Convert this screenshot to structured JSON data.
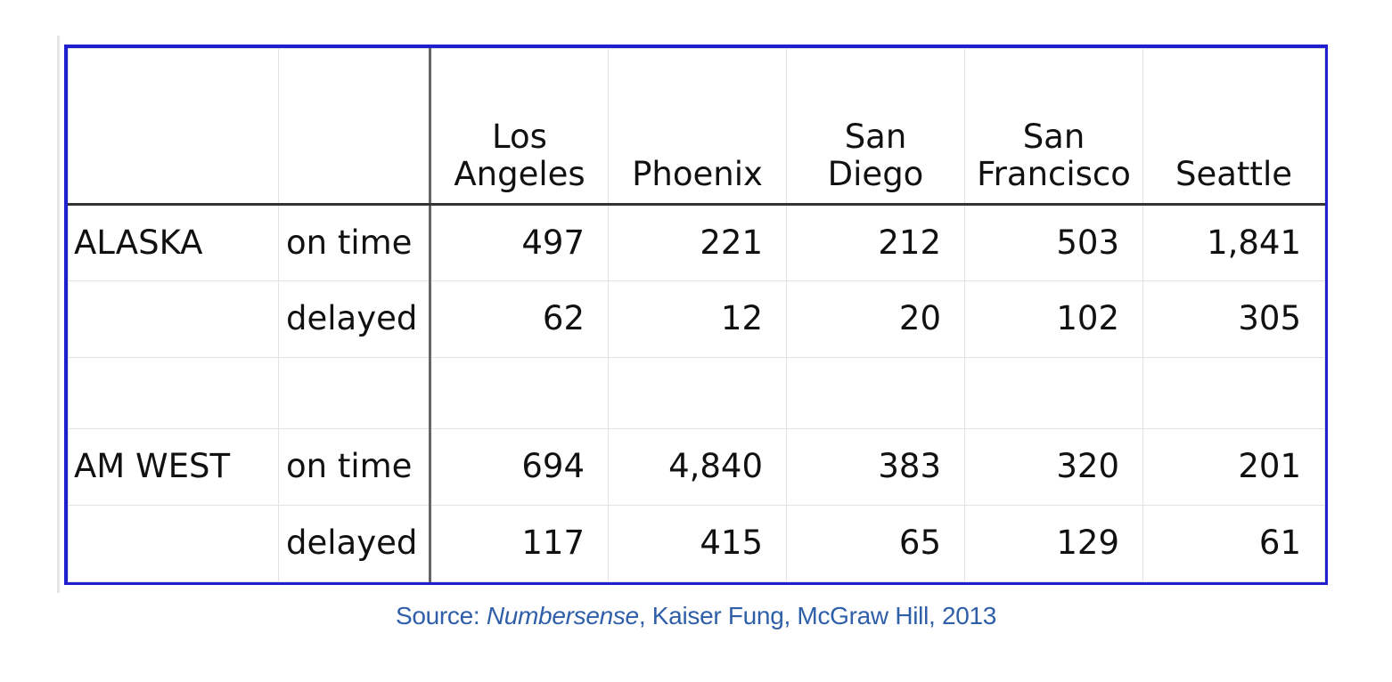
{
  "table": {
    "columns": [
      "Los Angeles",
      "Phoenix",
      "San Diego",
      "San Francisco",
      "Seattle"
    ],
    "column_lines": [
      [
        "Los",
        "Angeles"
      ],
      [
        "",
        "Phoenix"
      ],
      [
        "San",
        "Diego"
      ],
      [
        "San",
        "Francisco"
      ],
      [
        "",
        "Seattle"
      ]
    ],
    "rows": [
      {
        "airline": "ALASKA",
        "status": "on time",
        "values": [
          "497",
          "221",
          "212",
          "503",
          "1,841"
        ]
      },
      {
        "airline": "",
        "status": "delayed",
        "values": [
          "62",
          "12",
          "20",
          "102",
          "305"
        ]
      },
      {
        "airline": "",
        "status": "",
        "values": [
          "",
          "",
          "",
          "",
          ""
        ]
      },
      {
        "airline": "AM WEST",
        "status": "on time",
        "values": [
          "694",
          "4,840",
          "383",
          "320",
          "201"
        ]
      },
      {
        "airline": "",
        "status": "delayed",
        "values": [
          "117",
          "415",
          "65",
          "129",
          "61"
        ]
      }
    ]
  },
  "source": {
    "prefix": "Source:  ",
    "title": "Numbersense",
    "rest": ", Kaiser Fung, McGraw Hill, 2013"
  },
  "colors": {
    "frame_border": "#1f1fd0",
    "source_text": "#2e5fa8"
  }
}
